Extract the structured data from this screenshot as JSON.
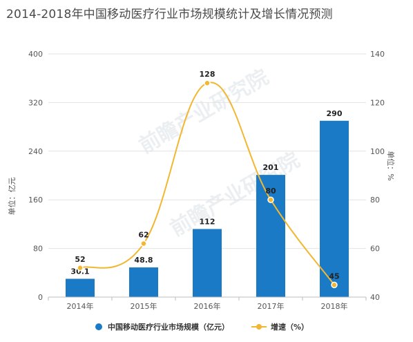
{
  "title": "2014-2018年中国移动医疗行业市场规模统计及增长情况预测",
  "chart_data": {
    "type": "bar",
    "categories": [
      "2014年",
      "2015年",
      "2016年",
      "2017年",
      "2018年"
    ],
    "series": [
      {
        "name": "中国移动医疗行业市场规模（亿元）",
        "type": "bar",
        "axis": "left",
        "values": [
          30.1,
          48.8,
          112,
          201,
          290
        ],
        "color": "#1a7ac6"
      },
      {
        "name": "增速（%）",
        "type": "line",
        "axis": "right",
        "values": [
          52,
          62,
          128,
          80,
          45
        ],
        "color": "#f2b731"
      }
    ],
    "y_left": {
      "label": "单位：亿元",
      "range": [
        0,
        400
      ],
      "ticks": [
        "0",
        "80",
        "160",
        "240",
        "320",
        "400"
      ]
    },
    "y_right": {
      "label": "单位：%",
      "range": [
        40,
        140
      ],
      "ticks": [
        "40",
        "60",
        "80",
        "100",
        "120",
        "140"
      ]
    },
    "grid": true,
    "legend_position": "bottom",
    "watermark": "前瞻产业研究院"
  }
}
